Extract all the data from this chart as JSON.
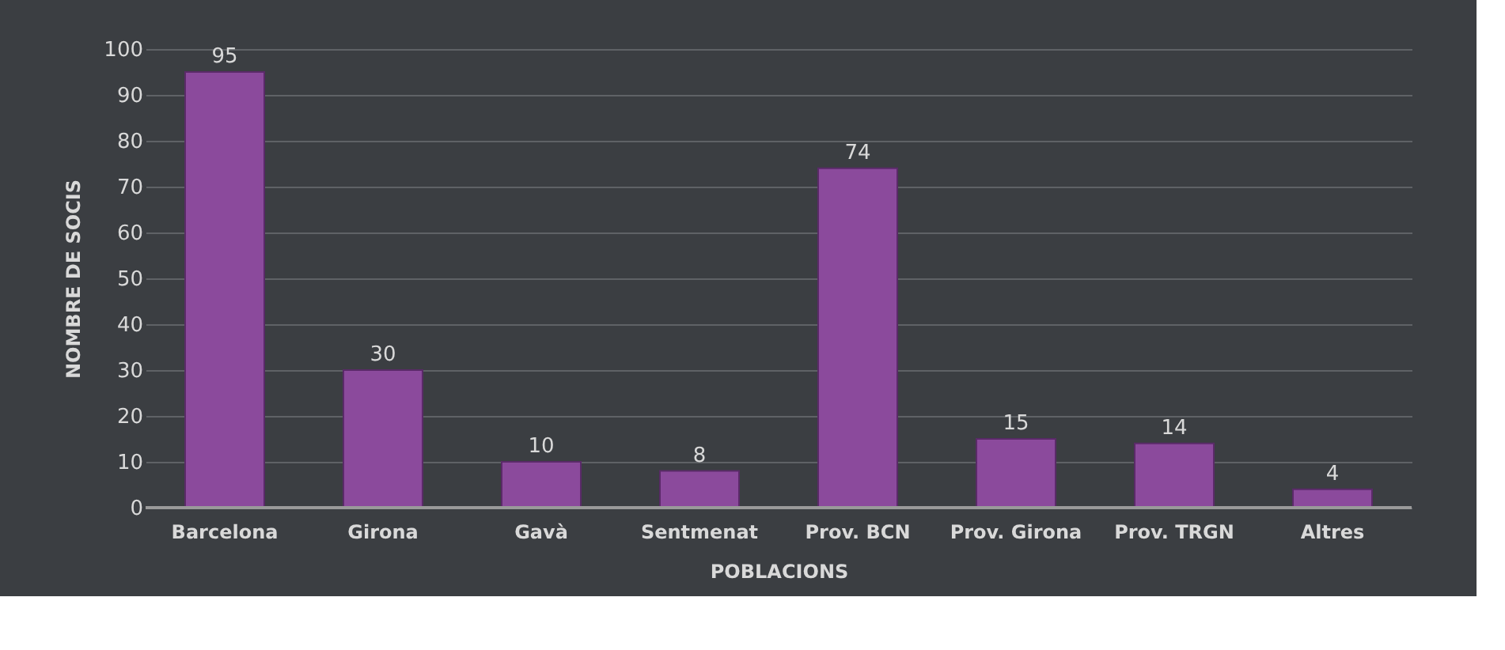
{
  "chart_data": {
    "type": "bar",
    "xlabel": "POBLACIONS",
    "ylabel": "NOMBRE  DE  SOCIS",
    "categories": [
      "Barcelona",
      "Girona",
      "Gavà",
      "Sentmenat",
      "Prov. BCN",
      "Prov. Girona",
      "Prov. TRGN",
      "Altres"
    ],
    "values": [
      95,
      30,
      10,
      8,
      74,
      15,
      14,
      4
    ],
    "color": "#8b4a9c",
    "ylim": [
      0,
      100
    ],
    "yticks": [
      0,
      10,
      20,
      30,
      40,
      50,
      60,
      70,
      80,
      90,
      100
    ],
    "grid": "y",
    "data_labels": true
  }
}
